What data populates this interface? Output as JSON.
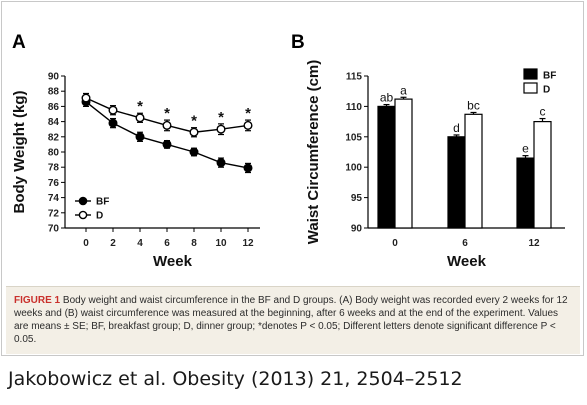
{
  "chart_data": [
    {
      "panel": "A",
      "type": "line",
      "xlabel": "Week",
      "ylabel": "Body Weight (kg)",
      "x": [
        0,
        2,
        4,
        6,
        8,
        10,
        12
      ],
      "ylim": [
        70,
        90
      ],
      "yticks": [
        70,
        72,
        74,
        76,
        78,
        80,
        82,
        84,
        86,
        88,
        90
      ],
      "grid": false,
      "legend": {
        "position": "bottom-left",
        "entries": [
          "BF",
          "D"
        ]
      },
      "series": [
        {
          "name": "BF",
          "marker": "filled-circle",
          "values": [
            86.6,
            83.8,
            82.0,
            81.0,
            80.0,
            78.6,
            77.9
          ],
          "errors": [
            0.6,
            0.6,
            0.6,
            0.5,
            0.5,
            0.6,
            0.6
          ]
        },
        {
          "name": "D",
          "marker": "open-circle",
          "values": [
            87.1,
            85.5,
            84.5,
            83.5,
            82.6,
            83.0,
            83.5
          ],
          "errors": [
            0.6,
            0.6,
            0.6,
            0.7,
            0.6,
            0.7,
            0.7
          ]
        }
      ],
      "annotations": [
        {
          "x": 4,
          "text": "*"
        },
        {
          "x": 6,
          "text": "*"
        },
        {
          "x": 8,
          "text": "*"
        },
        {
          "x": 10,
          "text": "*"
        },
        {
          "x": 12,
          "text": "*"
        }
      ]
    },
    {
      "panel": "B",
      "type": "bar",
      "xlabel": "Week",
      "ylabel": "Waist Circumference (cm)",
      "categories": [
        "0",
        "6",
        "12"
      ],
      "ylim": [
        90,
        115
      ],
      "yticks": [
        90,
        95,
        100,
        105,
        110,
        115
      ],
      "grid": false,
      "legend": {
        "position": "top-right",
        "entries": [
          "BF",
          "D"
        ]
      },
      "series": [
        {
          "name": "BF",
          "color": "#000000",
          "values": [
            110.0,
            105.0,
            101.5
          ],
          "errors": [
            0.3,
            0.3,
            0.4
          ],
          "labels": [
            "ab",
            "d",
            "e"
          ]
        },
        {
          "name": "D",
          "color": "#ffffff",
          "values": [
            111.2,
            108.7,
            107.5
          ],
          "errors": [
            0.3,
            0.3,
            0.5
          ],
          "labels": [
            "a",
            "bc",
            "c"
          ]
        }
      ]
    }
  ],
  "caption": {
    "label": "FIGURE 1",
    "text": " Body weight and waist circumference in the BF and D groups. (A) Body weight was recorded every 2 weeks for 12 weeks and (B) waist circumference was measured at the beginning, after 6 weeks and at the end of the experiment. Values are means ± SE; BF, breakfast group; D, dinner group; *denotes P < 0.05; Different letters denote significant difference P < 0.05."
  },
  "citation": "Jakobowicz et al. Obesity (2013) 21, 2504–2512"
}
